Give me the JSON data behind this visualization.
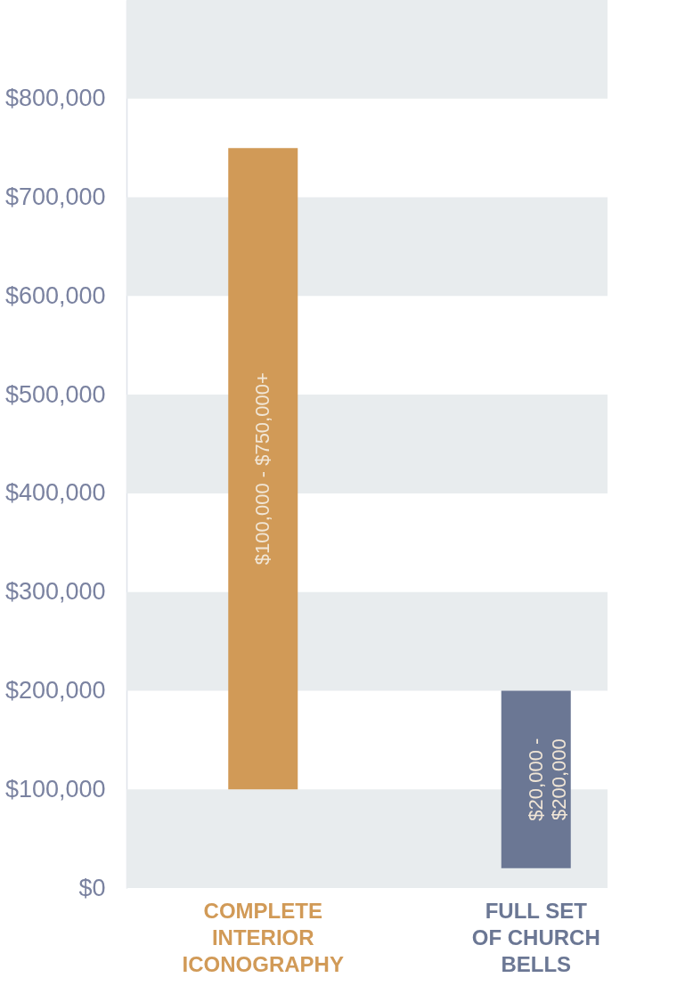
{
  "chart_data": {
    "type": "bar",
    "categories": [
      "COMPLETE\nINTERIOR\nICONOGRAPHY",
      "FULL SET\nOF CHURCH\nBELLS"
    ],
    "base": [
      100000,
      20000
    ],
    "values": [
      650000,
      180000
    ],
    "colors": [
      "#d19a57",
      "#6b7794"
    ],
    "annotations": [
      "$100,000 - $750,000+",
      "$20,000 -\n$200,000"
    ],
    "ylim": [
      0,
      900000
    ],
    "yticks": [
      {
        "value": 0,
        "label": "$0"
      },
      {
        "value": 100000,
        "label": "$100,000"
      },
      {
        "value": 200000,
        "label": "$200,000"
      },
      {
        "value": 300000,
        "label": "$300,000"
      },
      {
        "value": 400000,
        "label": "$400,000"
      },
      {
        "value": 500000,
        "label": "$500,000"
      },
      {
        "value": 600000,
        "label": "$600,000"
      },
      {
        "value": 700000,
        "label": "$700,000"
      },
      {
        "value": 800000,
        "label": "$800,000"
      }
    ],
    "bands": [
      {
        "axis": "y",
        "from": 0,
        "to": 100000,
        "color": "#e8ecee"
      },
      {
        "axis": "y",
        "from": 200000,
        "to": 300000,
        "color": "#e8ecee"
      },
      {
        "axis": "y",
        "from": 400000,
        "to": 500000,
        "color": "#e8ecee"
      },
      {
        "axis": "y",
        "from": 600000,
        "to": 700000,
        "color": "#e8ecee"
      },
      {
        "axis": "y",
        "from": 800000,
        "to": 900000,
        "color": "#e8ecee"
      }
    ],
    "grid": false
  }
}
